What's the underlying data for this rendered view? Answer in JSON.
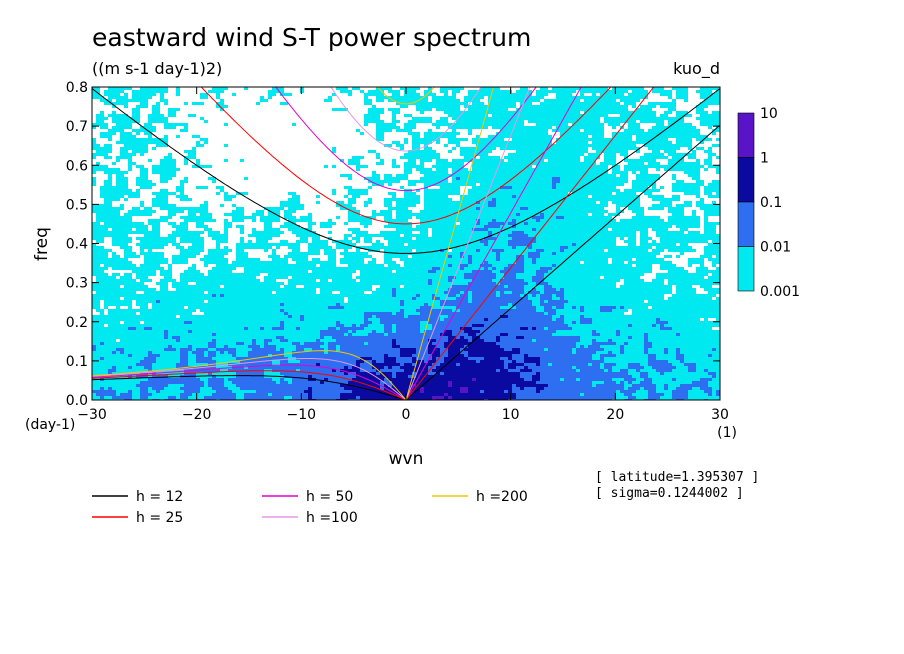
{
  "chart_data": {
    "type": "heatmap",
    "title": "eastward wind S-T power spectrum",
    "subtitle": "((m s-1 day-1)2)",
    "corner_label": "kuo_d",
    "xlabel": "wvn",
    "ylabel": "freq",
    "x_unit": "(1)",
    "y_unit": "(day-1)",
    "xlim": [
      -30,
      30
    ],
    "ylim": [
      0,
      0.8
    ],
    "x_ticks": [
      "−30",
      "−20",
      "−10",
      "0",
      "10",
      "20",
      "30"
    ],
    "x_tick_values": [
      -30,
      -20,
      -10,
      0,
      10,
      20,
      30
    ],
    "y_ticks": [
      "0.0",
      "0.1",
      "0.2",
      "0.3",
      "0.4",
      "0.5",
      "0.6",
      "0.7",
      "0.8"
    ],
    "y_tick_values": [
      0,
      0.1,
      0.2,
      0.3,
      0.4,
      0.5,
      0.6,
      0.7,
      0.8
    ],
    "colorbar": {
      "levels": [
        "10",
        "1",
        "0.1",
        "0.01",
        "0.001"
      ],
      "colors": [
        "#5a14c8",
        "#0a0aa0",
        "#2e6ef0",
        "#00e8f0"
      ]
    },
    "dispersion_curves": [
      {
        "label": "h = 12",
        "h": 12,
        "color": "#000000"
      },
      {
        "label": "h = 25",
        "h": 25,
        "color": "#ff0000"
      },
      {
        "label": "h = 50",
        "h": 50,
        "color": "#e600d2"
      },
      {
        "label": "h =100",
        "h": 100,
        "color": "#e696e6"
      },
      {
        "label": "h =200",
        "h": 200,
        "color": "#f0c800"
      }
    ],
    "info": [
      "[ latitude=1.395307 ]",
      "[ sigma=0.1244002 ]"
    ]
  }
}
